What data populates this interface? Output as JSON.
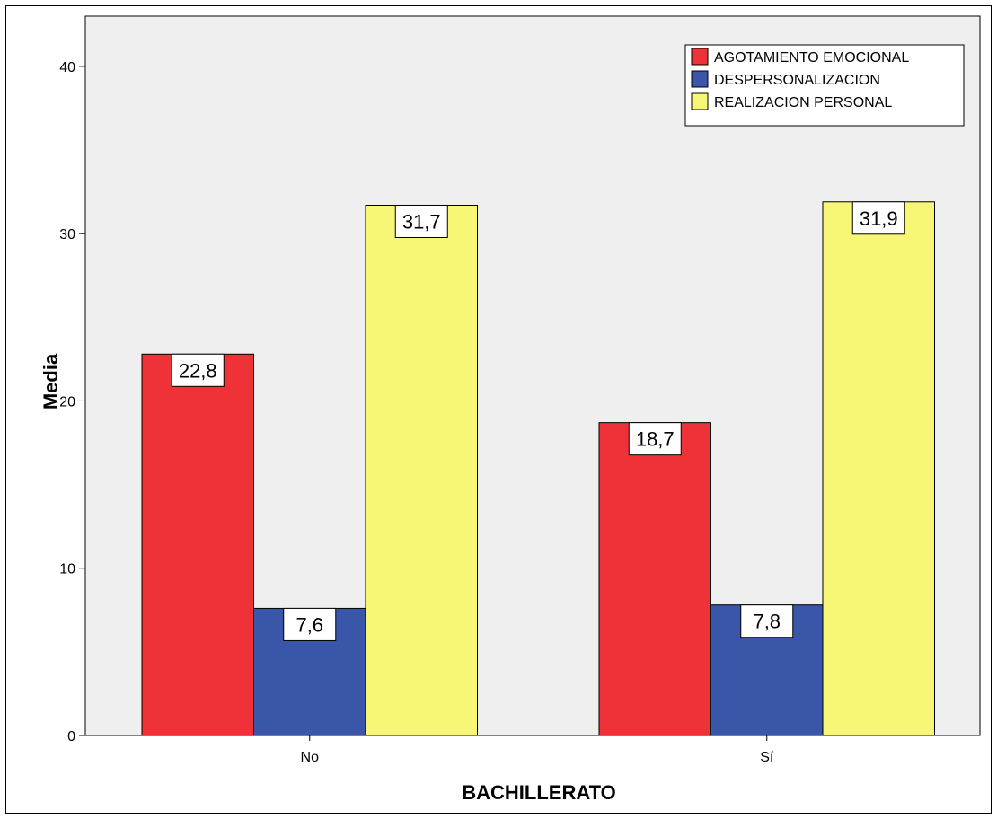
{
  "chart_data": {
    "type": "bar",
    "xlabel": "BACHILLERATO",
    "ylabel": "Media",
    "categories": [
      "No",
      "Sí"
    ],
    "ylim": [
      0,
      43
    ],
    "yticks": [
      0,
      10,
      20,
      30,
      40
    ],
    "grid": false,
    "legend_position": "top-right",
    "series": [
      {
        "name": "AGOTAMIENTO EMOCIONAL",
        "color": "#ef3238",
        "values": [
          22.8,
          18.7
        ],
        "labels": [
          "22,8",
          "18,7"
        ]
      },
      {
        "name": "DESPERSONALIZACION",
        "color": "#3a56a8",
        "values": [
          7.6,
          7.8
        ],
        "labels": [
          "7,6",
          "7,8"
        ]
      },
      {
        "name": "REALIZACION PERSONAL",
        "color": "#f8f775",
        "values": [
          31.7,
          31.9
        ],
        "labels": [
          "31,7",
          "31,9"
        ]
      }
    ],
    "plot_background": "#efefef"
  }
}
